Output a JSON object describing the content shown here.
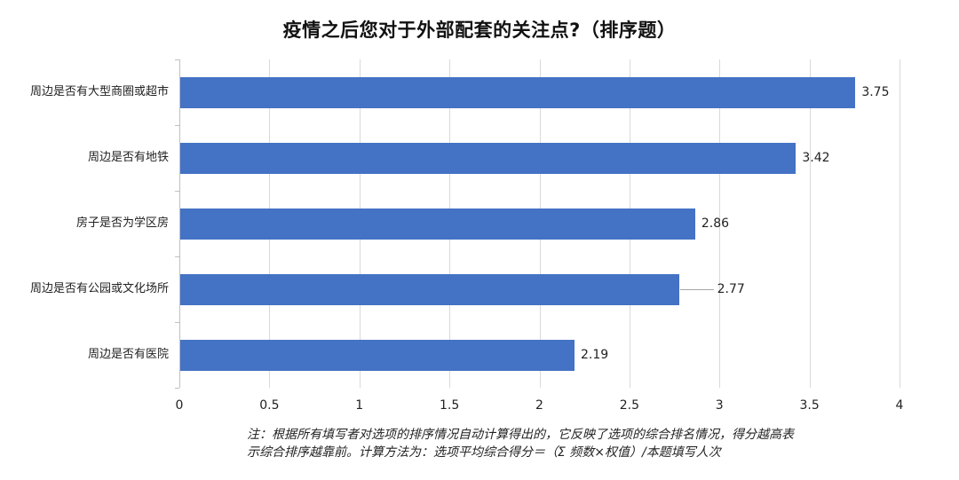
{
  "title": "疫情之后您对于外部配套的关注点?（排序题）",
  "chart_data": {
    "type": "bar",
    "orientation": "horizontal",
    "title": "疫情之后您对于外部配套的关注点?（排序题）",
    "categories": [
      "周边是否有大型商圈或超市",
      "周边是否有地铁",
      "房子是否为学区房",
      "周边是否有公园或文化场所",
      "周边是否有医院"
    ],
    "values": [
      3.75,
      3.42,
      2.86,
      2.77,
      2.19
    ],
    "value_labels": [
      "3.75",
      "3.42",
      "2.86",
      "2.77",
      "2.19"
    ],
    "xlabel": "",
    "ylabel": "",
    "xlim": [
      0,
      4
    ],
    "x_ticks": [
      "0",
      "0.5",
      "1",
      "1.5",
      "2",
      "2.5",
      "3",
      "3.5",
      "4"
    ],
    "grid": "vertical",
    "legend": "none",
    "bar_color": "#4472c4"
  },
  "note": {
    "line1": "注：根据所有填写者对选项的排序情况自动计算得出的，它反映了选项的综合排名情况，得分越高表",
    "line2": "示综合排序越靠前。计算方法为：选项平均综合得分＝（Σ 频数×权值）/本题填写人次"
  }
}
